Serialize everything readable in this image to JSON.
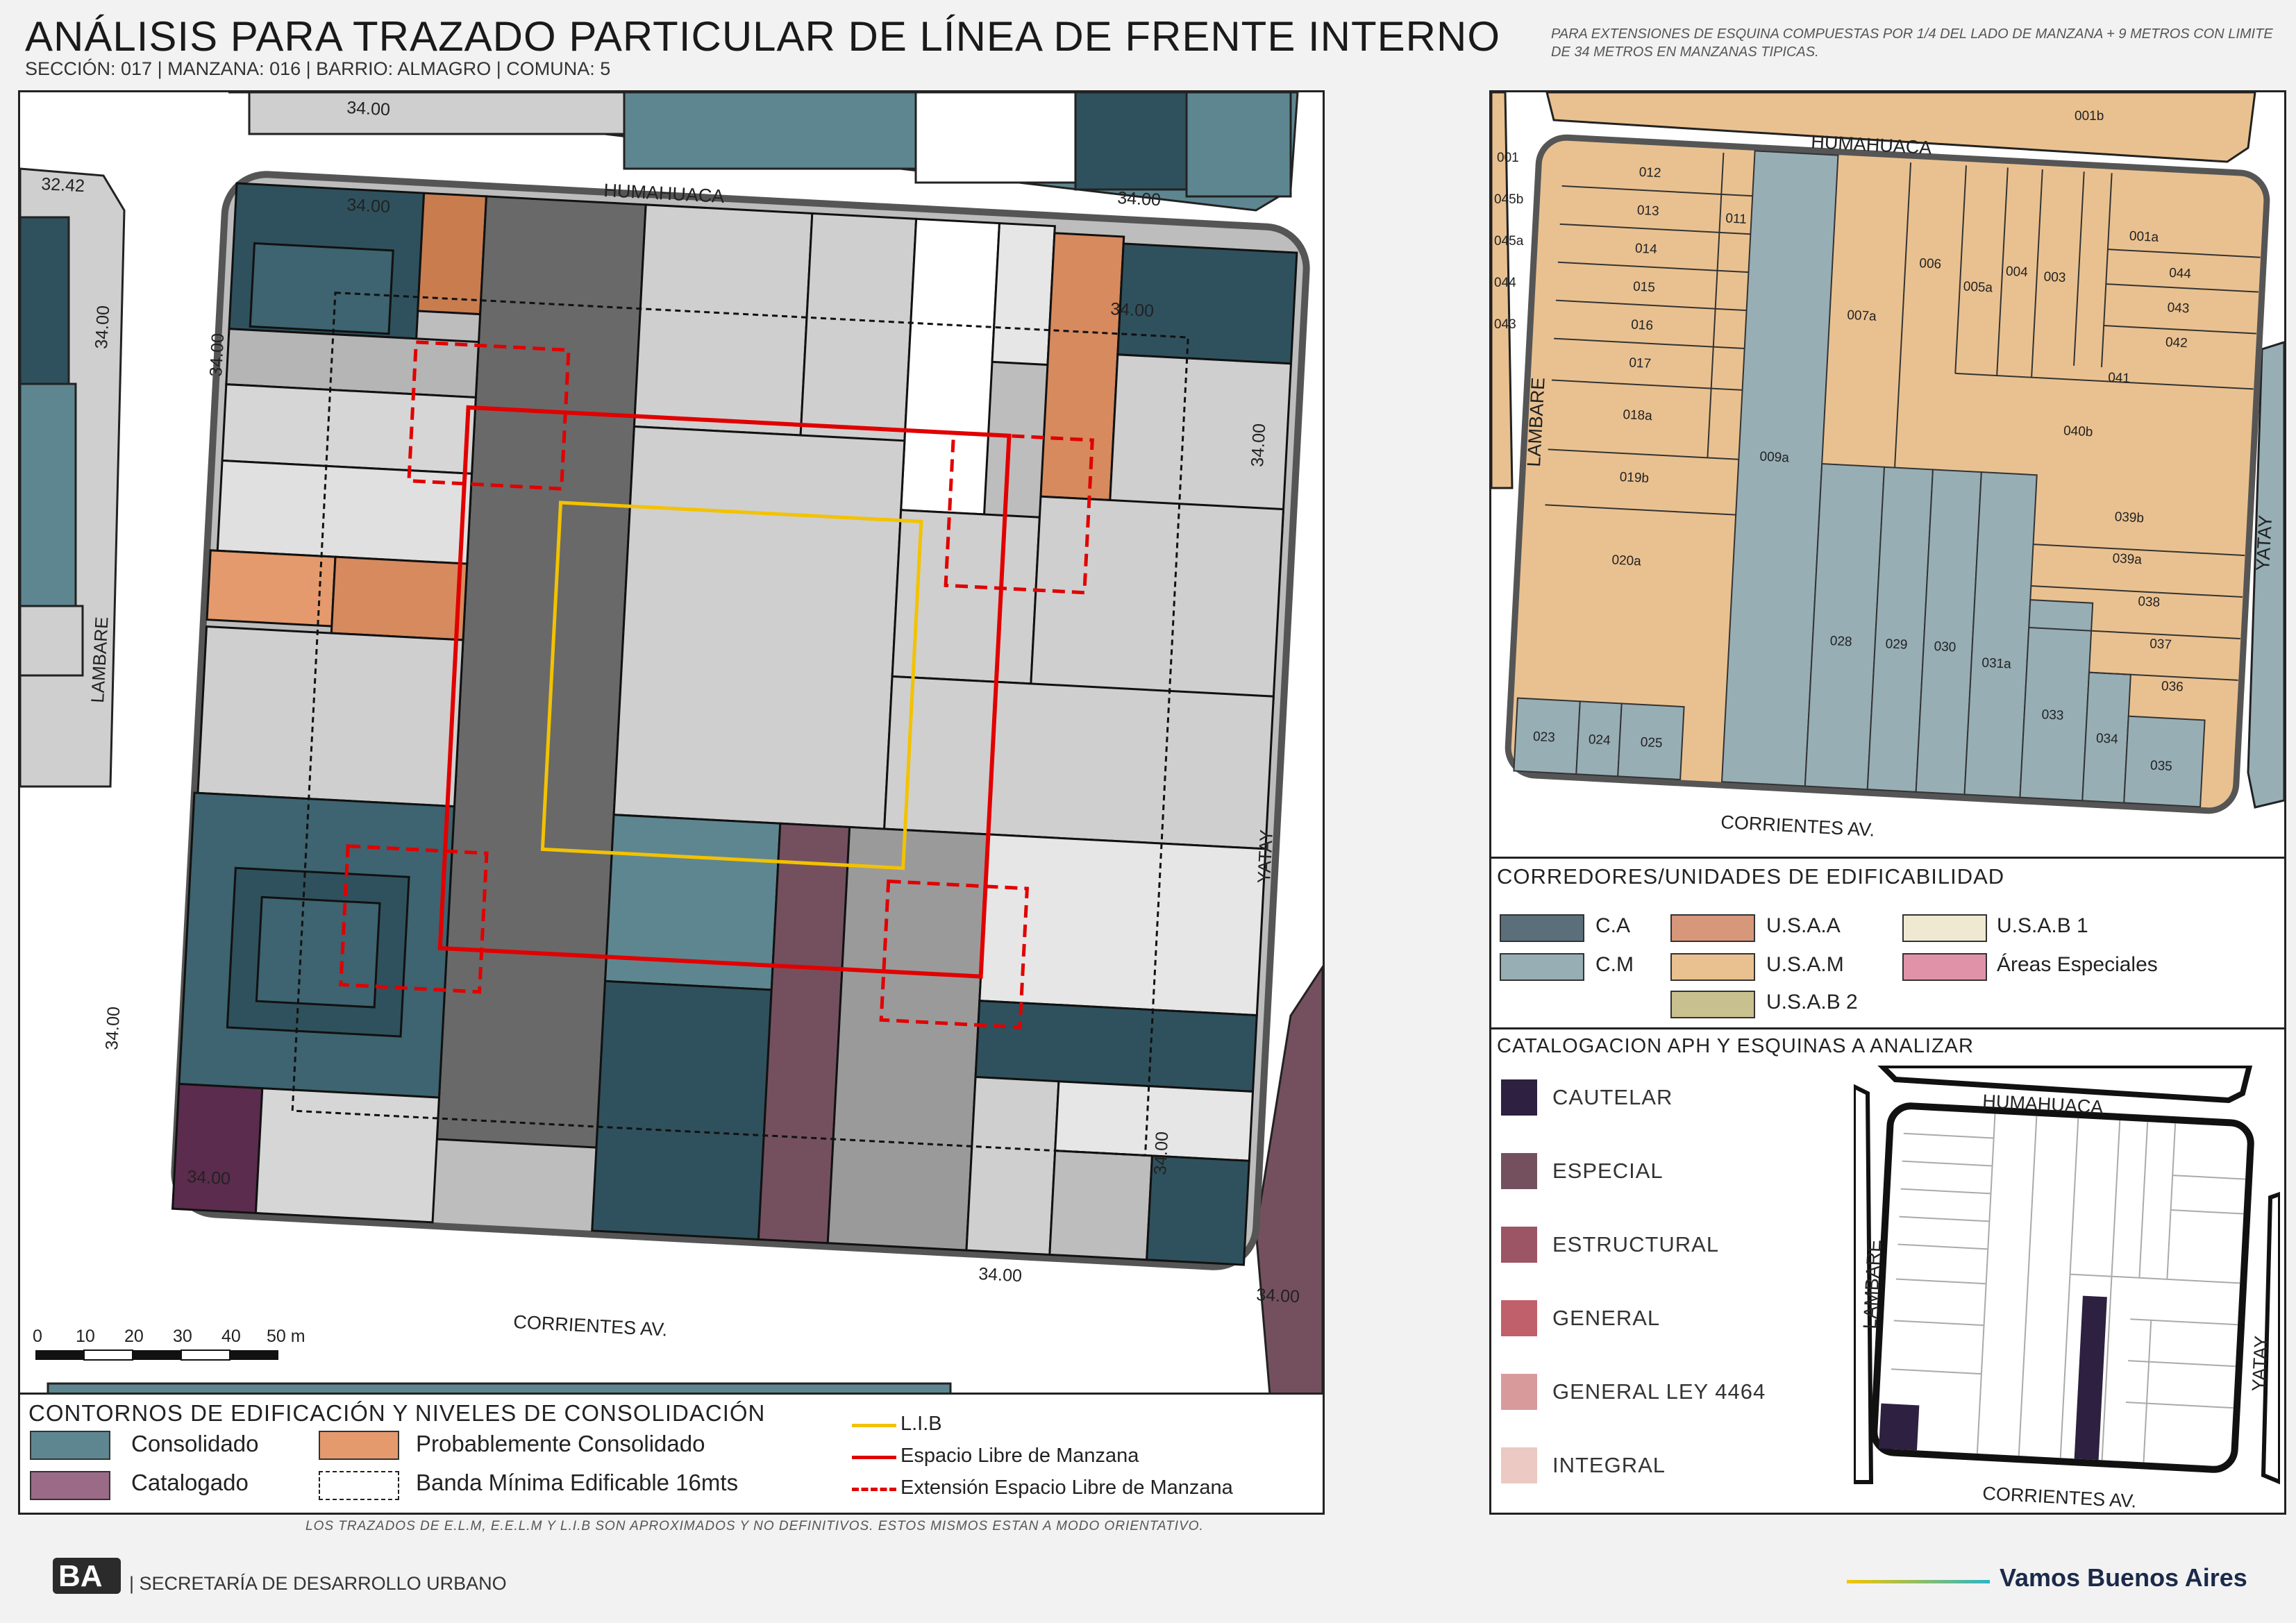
{
  "header": {
    "title": "ANÁLISIS PARA TRAZADO PARTICULAR DE LÍNEA DE FRENTE INTERNO",
    "subtitle": "SECCIÓN: 017 |  MANZANA: 016 | BARRIO: ALMAGRO | COMUNA: 5",
    "note": "PARA EXTENSIONES DE ESQUINA COMPUESTAS POR 1/4 DEL LADO DE MANZANA + 9 METROS CON LIMITE DE 34 METROS EN MANZANAS TIPICAS."
  },
  "main_map": {
    "streets": {
      "north": "HUMAHUACA",
      "south": "CORRIENTES AV.",
      "west": "LAMBARE",
      "east": "YATAY"
    },
    "dimension_labels": [
      "34.00",
      "34.00",
      "34.00",
      "34.00",
      "34.00",
      "34.00",
      "34.00",
      "34.00",
      "34.00",
      "34.00",
      "32.42",
      "34.00",
      "34.00"
    ],
    "scale_bar": {
      "ticks": [
        "0",
        "10",
        "20",
        "30",
        "40",
        "50 m"
      ]
    }
  },
  "main_legend": {
    "title": "CONTORNOS DE EDIFICACIÓN Y NIVELES DE CONSOLIDACIÓN",
    "items": [
      {
        "label": "Consolidado",
        "color": "#5e8690"
      },
      {
        "label": "Probablemente Consolidado",
        "color": "#e49a6c"
      },
      {
        "label": "Catalogado",
        "color": "#9b6a86"
      },
      {
        "label": "Banda Mínima Edificable 16mts",
        "color": "#ffffff"
      }
    ],
    "lines": [
      {
        "label": "L.I.B",
        "color": "#f2c200",
        "style": "solid"
      },
      {
        "label": "Espacio Libre de Manzana",
        "color": "#e10000",
        "style": "solid"
      },
      {
        "label": "Extensión Espacio Libre de Manzana",
        "color": "#e10000",
        "style": "dashed"
      }
    ]
  },
  "parcel_map": {
    "streets": {
      "north": "HUMAHUACA",
      "south": "CORRIENTES AV.",
      "west": "LAMBARE",
      "east": "YATAY"
    },
    "parcel_labels": [
      "012",
      "013",
      "014",
      "015",
      "016",
      "017",
      "018a",
      "019b",
      "020a",
      "011",
      "009a",
      "007a",
      "006",
      "005a",
      "004",
      "003",
      "001a",
      "044",
      "043",
      "042",
      "041",
      "040b",
      "039b",
      "039a",
      "038",
      "037",
      "036",
      "035",
      "034",
      "033",
      "031a",
      "030",
      "029",
      "028",
      "025",
      "024",
      "023",
      "001",
      "045b",
      "045a",
      "044",
      "043",
      "001b"
    ]
  },
  "corredores_legend": {
    "title": "CORREDORES/UNIDADES DE EDIFICABILIDAD",
    "items": [
      {
        "label": "C.A",
        "color": "#5b6f7a"
      },
      {
        "label": "C.M",
        "color": "#97aeb5"
      },
      {
        "label": "U.S.A.A",
        "color": "#d6977a"
      },
      {
        "label": "U.S.A.M",
        "color": "#e9c190"
      },
      {
        "label": "U.S.A.B 2",
        "color": "#c9c08f"
      },
      {
        "label": "U.S.A.B 1",
        "color": "#efe9d2"
      },
      {
        "label": "Áreas Especiales",
        "color": "#e093a8"
      }
    ]
  },
  "catalogacion_legend": {
    "title": "CATALOGACION APH Y ESQUINAS A ANALIZAR",
    "items": [
      {
        "label": "CAUTELAR",
        "color": "#2d2040"
      },
      {
        "label": "ESPECIAL",
        "color": "#74505f"
      },
      {
        "label": "ESTRUCTURAL",
        "color": "#9c5565"
      },
      {
        "label": "GENERAL",
        "color": "#c0606b"
      },
      {
        "label": "GENERAL LEY 4464",
        "color": "#d99a9b"
      },
      {
        "label": "INTEGRAL",
        "color": "#ecc9c2"
      }
    ],
    "mini_streets": {
      "north": "HUMAHUACA",
      "south": "CORRIENTES AV.",
      "west": "LAMBARE",
      "east": "YATAY"
    }
  },
  "footer": {
    "disclaimer": "LOS TRAZADOS DE E.L.M, E.E.L.M Y L.I.B SON APROXIMADOS Y NO DEFINITIVOS. ESTOS MISMOS ESTAN A MODO ORIENTATIVO.",
    "logo": "BA",
    "org": "| SECRETARÍA DE DESARROLLO URBANO",
    "slogan": "Vamos Buenos Aires",
    "slogan_gradient": [
      "#f5c400",
      "#2bb6c8"
    ]
  }
}
